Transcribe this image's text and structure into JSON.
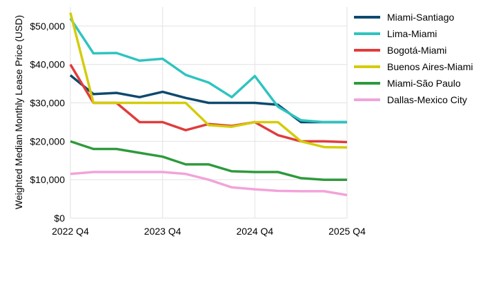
{
  "chart_data": {
    "type": "line",
    "title": "",
    "xlabel": "",
    "ylabel": "Weighted Median Monthly Lease Price (USD)",
    "x": [
      0,
      1,
      2,
      3,
      4,
      5,
      6,
      7,
      8,
      9,
      10,
      11,
      12
    ],
    "xlim": [
      0,
      12
    ],
    "x_ticks": [
      {
        "x": 0,
        "label": "2022 Q4"
      },
      {
        "x": 4,
        "label": "2023 Q4"
      },
      {
        "x": 8,
        "label": "2024 Q4"
      },
      {
        "x": 12,
        "label": "2025 Q4"
      }
    ],
    "ylim": [
      0,
      55000
    ],
    "y_ticks": [
      {
        "y": 0,
        "label": "$0"
      },
      {
        "y": 10000,
        "label": "$10,000"
      },
      {
        "y": 20000,
        "label": "$20,000"
      },
      {
        "y": 30000,
        "label": "$30,000"
      },
      {
        "y": 40000,
        "label": "$40,000"
      },
      {
        "y": 50000,
        "label": "$50,000"
      }
    ],
    "grid": true,
    "legend_position": "right",
    "series": [
      {
        "name": "Miami-Santiago",
        "color": "#0d4a6e",
        "values": [
          37200,
          32300,
          32600,
          31500,
          32900,
          31300,
          30000,
          30000,
          30000,
          29500,
          25000,
          25000,
          25000
        ]
      },
      {
        "name": "Lima-Miami",
        "color": "#2ec4c0",
        "values": [
          52000,
          42900,
          43000,
          41000,
          41500,
          37300,
          35300,
          31500,
          37000,
          29000,
          25500,
          25000,
          25000
        ]
      },
      {
        "name": "Bogotá-Miami",
        "color": "#e03c3c",
        "values": [
          40000,
          30000,
          30000,
          25000,
          25000,
          22900,
          24500,
          24000,
          25000,
          21600,
          20000,
          20000,
          19800
        ]
      },
      {
        "name": "Buenos Aires-Miami",
        "color": "#d4cc0a",
        "values": [
          53500,
          30000,
          30000,
          30000,
          30000,
          30000,
          24200,
          23800,
          25000,
          25000,
          20000,
          18500,
          18400
        ]
      },
      {
        "name": "Miami-São Paulo",
        "color": "#2e9a3c",
        "values": [
          20000,
          18000,
          18000,
          17000,
          16000,
          14000,
          14000,
          12200,
          12000,
          12000,
          10400,
          10000,
          10000
        ]
      },
      {
        "name": "Dallas-Mexico City",
        "color": "#f2a3d9",
        "values": [
          11500,
          12000,
          12000,
          12000,
          12000,
          11500,
          10000,
          8000,
          7500,
          7100,
          7000,
          7000,
          6000
        ]
      }
    ]
  }
}
